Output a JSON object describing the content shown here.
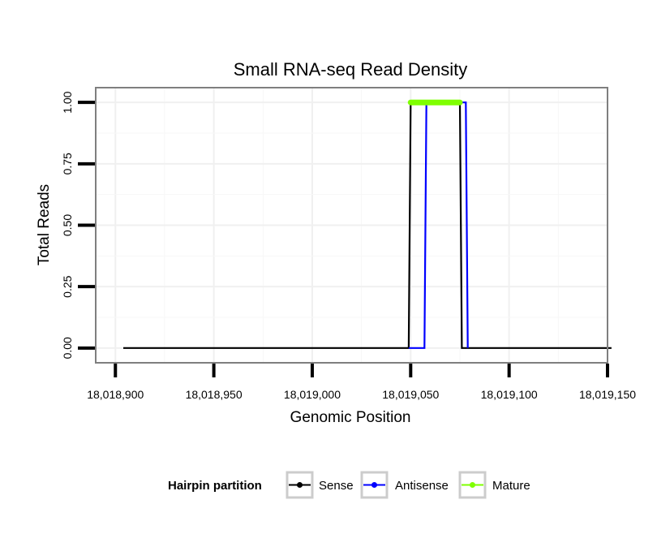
{
  "chart_data": {
    "type": "line",
    "title": "Small RNA-seq Read Density",
    "xlabel": "Genomic Position",
    "ylabel": "Total Reads",
    "xlim": [
      18018890,
      18019150
    ],
    "ylim": [
      -0.06,
      1.06
    ],
    "x_ticks": [
      18018900,
      18018950,
      18019000,
      18019050,
      18019100,
      18019150
    ],
    "x_tick_labels": [
      "18,018,900",
      "18,018,950",
      "18,019,000",
      "18,019,050",
      "18,019,100",
      "18,019,150"
    ],
    "y_ticks": [
      0.0,
      0.25,
      0.5,
      0.75,
      1.0
    ],
    "y_tick_labels": [
      "0.00",
      "0.25",
      "0.50",
      "0.75",
      "1.00"
    ],
    "grid": true,
    "legend_position": "bottom",
    "legend_title": "Hairpin partition",
    "series": [
      {
        "name": "Sense",
        "color": "#000000",
        "x": [
          18018904,
          18019049,
          18019050,
          18019075,
          18019076,
          18019152
        ],
        "y": [
          0,
          0,
          1,
          1,
          0,
          0
        ]
      },
      {
        "name": "Antisense",
        "color": "#0000ff",
        "x": [
          18019049,
          18019057,
          18019058,
          18019078,
          18019079
        ],
        "y": [
          0,
          0,
          1,
          1,
          0
        ]
      },
      {
        "name": "Mature",
        "color": "#7fff00",
        "x": [
          18019050,
          18019075
        ],
        "y": [
          1,
          1
        ]
      }
    ]
  }
}
